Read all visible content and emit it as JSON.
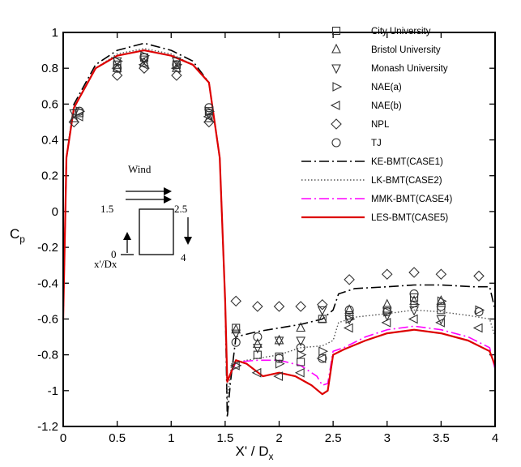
{
  "chart_data": {
    "type": "line+scatter",
    "title": "",
    "ylabel_main": "C",
    "ylabel_sub": "p",
    "xlabel_main": "X' / D",
    "xlabel_sub": "x",
    "xlim": [
      0,
      4
    ],
    "ylim": [
      -1.2,
      1
    ],
    "xticks": [
      0,
      0.5,
      1,
      1.5,
      2,
      2.5,
      3,
      3.5,
      4
    ],
    "xtick_labels": [
      "0",
      "0.5",
      "1",
      "1.5",
      "2",
      "2.5",
      "3",
      "3.5",
      "4"
    ],
    "yticks": [
      1,
      0.8,
      0.6,
      0.4,
      0.2,
      0,
      -0.2,
      -0.4,
      -0.6,
      -0.8,
      -1,
      -1.2
    ],
    "ytick_labels": [
      "1",
      "0.8",
      "0.6",
      "0.4",
      "0.2",
      "0",
      "-0.2",
      "-0.4",
      "-0.6",
      "-0.8",
      "-1",
      "-1.2"
    ],
    "grid": false,
    "legend_position": "top-right",
    "scatter_series": [
      {
        "name": "City University",
        "marker": "square",
        "points": [
          [
            0.15,
            0.55
          ],
          [
            0.5,
            0.82
          ],
          [
            0.75,
            0.86
          ],
          [
            1.05,
            0.82
          ],
          [
            1.35,
            0.56
          ],
          [
            1.6,
            -0.65
          ],
          [
            1.8,
            -0.8
          ],
          [
            2.0,
            -0.81
          ],
          [
            2.2,
            -0.84
          ],
          [
            2.4,
            -0.6
          ],
          [
            2.65,
            -0.58
          ],
          [
            3.0,
            -0.55
          ],
          [
            3.25,
            -0.48
          ],
          [
            3.5,
            -0.55
          ]
        ]
      },
      {
        "name": "Bristol University",
        "marker": "triangle-up",
        "points": [
          [
            0.1,
            0.52
          ],
          [
            0.5,
            0.8
          ],
          [
            0.75,
            0.83
          ],
          [
            1.05,
            0.8
          ],
          [
            1.35,
            0.52
          ],
          [
            1.6,
            -0.66
          ],
          [
            1.8,
            -0.74
          ],
          [
            2.0,
            -0.72
          ],
          [
            2.2,
            -0.65
          ],
          [
            2.4,
            -0.6
          ],
          [
            2.65,
            -0.55
          ],
          [
            3.0,
            -0.52
          ],
          [
            3.25,
            -0.5
          ],
          [
            3.5,
            -0.5
          ]
        ]
      },
      {
        "name": "Monash University",
        "marker": "triangle-down",
        "points": [
          [
            0.1,
            0.55
          ],
          [
            0.5,
            0.84
          ],
          [
            0.75,
            0.85
          ],
          [
            1.05,
            0.84
          ],
          [
            1.35,
            0.55
          ],
          [
            1.6,
            -0.68
          ],
          [
            1.8,
            -0.76
          ],
          [
            2.0,
            -0.72
          ],
          [
            2.2,
            -0.72
          ],
          [
            2.4,
            -0.55
          ],
          [
            2.65,
            -0.6
          ],
          [
            3.0,
            -0.58
          ],
          [
            3.25,
            -0.55
          ],
          [
            3.5,
            -0.6
          ]
        ]
      },
      {
        "name": "NAE(a)",
        "marker": "triangle-right",
        "points": [
          [
            0.15,
            0.56
          ],
          [
            0.5,
            0.84
          ],
          [
            0.75,
            0.87
          ],
          [
            1.05,
            0.82
          ],
          [
            1.35,
            0.56
          ],
          [
            1.6,
            -0.86
          ],
          [
            2.0,
            -0.85
          ],
          [
            2.2,
            -0.8
          ],
          [
            2.4,
            -0.78
          ],
          [
            2.65,
            -0.6
          ],
          [
            3.0,
            -0.56
          ],
          [
            3.25,
            -0.52
          ],
          [
            3.5,
            -0.5
          ],
          [
            3.85,
            -0.55
          ]
        ]
      },
      {
        "name": "NAE(b)",
        "marker": "triangle-left",
        "points": [
          [
            0.15,
            0.53
          ],
          [
            0.5,
            0.8
          ],
          [
            0.75,
            0.82
          ],
          [
            1.05,
            0.8
          ],
          [
            1.35,
            0.53
          ],
          [
            1.6,
            -0.86
          ],
          [
            1.8,
            -0.9
          ],
          [
            2.0,
            -0.92
          ],
          [
            2.2,
            -0.9
          ],
          [
            2.4,
            -0.82
          ],
          [
            2.65,
            -0.65
          ],
          [
            3.0,
            -0.62
          ],
          [
            3.25,
            -0.6
          ],
          [
            3.5,
            -0.62
          ],
          [
            3.85,
            -0.65
          ]
        ]
      },
      {
        "name": "NPL",
        "marker": "diamond",
        "points": [
          [
            0.1,
            0.5
          ],
          [
            0.5,
            0.76
          ],
          [
            0.75,
            0.8
          ],
          [
            1.05,
            0.76
          ],
          [
            1.35,
            0.5
          ],
          [
            1.6,
            -0.5
          ],
          [
            1.8,
            -0.53
          ],
          [
            2.0,
            -0.53
          ],
          [
            2.2,
            -0.53
          ],
          [
            2.4,
            -0.52
          ],
          [
            2.65,
            -0.38
          ],
          [
            3.0,
            -0.35
          ],
          [
            3.25,
            -0.34
          ],
          [
            3.5,
            -0.35
          ],
          [
            3.85,
            -0.36
          ]
        ]
      },
      {
        "name": "TJ",
        "marker": "circle",
        "points": [
          [
            0.15,
            0.56
          ],
          [
            0.5,
            0.8
          ],
          [
            0.75,
            0.86
          ],
          [
            1.05,
            0.82
          ],
          [
            1.35,
            0.58
          ],
          [
            1.6,
            -0.73
          ],
          [
            1.8,
            -0.7
          ],
          [
            2.0,
            -0.82
          ],
          [
            2.2,
            -0.76
          ],
          [
            2.4,
            -0.82
          ],
          [
            2.65,
            -0.55
          ],
          [
            3.0,
            -0.56
          ],
          [
            3.25,
            -0.46
          ],
          [
            3.5,
            -0.53
          ],
          [
            3.85,
            -0.56
          ]
        ]
      }
    ],
    "line_series": [
      {
        "name": "KE-BMT(CASE1)",
        "style": "dashdot",
        "color": "#000000",
        "points": [
          [
            0,
            -0.6
          ],
          [
            0.03,
            0.3
          ],
          [
            0.1,
            0.6
          ],
          [
            0.3,
            0.82
          ],
          [
            0.5,
            0.9
          ],
          [
            0.75,
            0.94
          ],
          [
            1.0,
            0.9
          ],
          [
            1.2,
            0.84
          ],
          [
            1.35,
            0.72
          ],
          [
            1.45,
            0.3
          ],
          [
            1.5,
            -0.5
          ],
          [
            1.52,
            -1.15
          ],
          [
            1.55,
            -0.95
          ],
          [
            1.6,
            -0.7
          ],
          [
            1.8,
            -0.67
          ],
          [
            2.0,
            -0.65
          ],
          [
            2.2,
            -0.63
          ],
          [
            2.4,
            -0.6
          ],
          [
            2.5,
            -0.55
          ],
          [
            2.55,
            -0.46
          ],
          [
            2.7,
            -0.43
          ],
          [
            3.0,
            -0.42
          ],
          [
            3.25,
            -0.41
          ],
          [
            3.5,
            -0.41
          ],
          [
            3.8,
            -0.42
          ],
          [
            3.95,
            -0.42
          ],
          [
            4.0,
            -0.55
          ]
        ]
      },
      {
        "name": "LK-BMT(CASE2)",
        "style": "dotted",
        "color": "#555555",
        "points": [
          [
            0,
            -0.6
          ],
          [
            0.03,
            0.3
          ],
          [
            0.1,
            0.58
          ],
          [
            0.3,
            0.8
          ],
          [
            0.5,
            0.88
          ],
          [
            0.75,
            0.91
          ],
          [
            1.0,
            0.88
          ],
          [
            1.2,
            0.82
          ],
          [
            1.35,
            0.72
          ],
          [
            1.45,
            0.3
          ],
          [
            1.5,
            -0.5
          ],
          [
            1.52,
            -1.05
          ],
          [
            1.56,
            -0.85
          ],
          [
            1.7,
            -0.83
          ],
          [
            2.0,
            -0.8
          ],
          [
            2.2,
            -0.76
          ],
          [
            2.4,
            -0.75
          ],
          [
            2.5,
            -0.72
          ],
          [
            2.55,
            -0.62
          ],
          [
            2.7,
            -0.59
          ],
          [
            3.0,
            -0.57
          ],
          [
            3.25,
            -0.55
          ],
          [
            3.5,
            -0.56
          ],
          [
            3.75,
            -0.58
          ],
          [
            3.95,
            -0.6
          ],
          [
            4.0,
            -0.7
          ]
        ]
      },
      {
        "name": "MMK-BMT(CASE4)",
        "style": "dashdot",
        "color": "#ff00ff",
        "points": [
          [
            0,
            -0.6
          ],
          [
            0.03,
            0.3
          ],
          [
            0.1,
            0.58
          ],
          [
            0.3,
            0.8
          ],
          [
            0.5,
            0.87
          ],
          [
            0.75,
            0.9
          ],
          [
            1.0,
            0.87
          ],
          [
            1.2,
            0.82
          ],
          [
            1.35,
            0.72
          ],
          [
            1.45,
            0.3
          ],
          [
            1.5,
            -0.5
          ],
          [
            1.52,
            -0.95
          ],
          [
            1.6,
            -0.84
          ],
          [
            1.8,
            -0.83
          ],
          [
            2.0,
            -0.83
          ],
          [
            2.2,
            -0.86
          ],
          [
            2.35,
            -0.92
          ],
          [
            2.4,
            -0.97
          ],
          [
            2.45,
            -0.96
          ],
          [
            2.5,
            -0.78
          ],
          [
            2.6,
            -0.76
          ],
          [
            2.8,
            -0.7
          ],
          [
            3.0,
            -0.66
          ],
          [
            3.25,
            -0.64
          ],
          [
            3.5,
            -0.66
          ],
          [
            3.75,
            -0.7
          ],
          [
            3.95,
            -0.76
          ],
          [
            4.0,
            -0.88
          ]
        ]
      },
      {
        "name": "LES-BMT(CASE5)",
        "style": "solid",
        "color": "#dd0000",
        "points": [
          [
            0,
            -0.6
          ],
          [
            0.03,
            0.3
          ],
          [
            0.1,
            0.58
          ],
          [
            0.3,
            0.8
          ],
          [
            0.5,
            0.87
          ],
          [
            0.75,
            0.9
          ],
          [
            1.0,
            0.87
          ],
          [
            1.2,
            0.82
          ],
          [
            1.35,
            0.72
          ],
          [
            1.45,
            0.3
          ],
          [
            1.5,
            -0.5
          ],
          [
            1.52,
            -0.95
          ],
          [
            1.6,
            -0.83
          ],
          [
            1.7,
            -0.85
          ],
          [
            1.85,
            -0.92
          ],
          [
            2.0,
            -0.9
          ],
          [
            2.15,
            -0.92
          ],
          [
            2.3,
            -0.97
          ],
          [
            2.4,
            -1.02
          ],
          [
            2.45,
            -1.0
          ],
          [
            2.5,
            -0.8
          ],
          [
            2.6,
            -0.77
          ],
          [
            2.8,
            -0.72
          ],
          [
            3.0,
            -0.68
          ],
          [
            3.25,
            -0.66
          ],
          [
            3.5,
            -0.68
          ],
          [
            3.75,
            -0.72
          ],
          [
            3.95,
            -0.78
          ],
          [
            4.0,
            -0.86
          ]
        ]
      }
    ],
    "inset": {
      "wind_label": "Wind",
      "label_1_5": "1.5",
      "label_2_5": "2.5",
      "label_0": "0",
      "label_4": "4",
      "label_xprime": "x'/Dx"
    }
  }
}
